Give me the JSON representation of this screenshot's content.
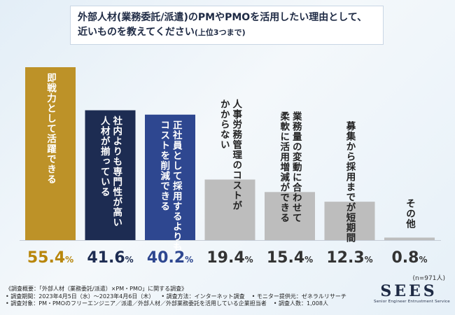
{
  "title": {
    "line1": "外部人材(業務委託/派遣)のPMやPMOを活用したい理由として、",
    "line2_main": "近いものを教えてください",
    "line2_sub": "(上位3つまで)"
  },
  "chart_data": {
    "type": "bar",
    "title": "外部人材(業務委託/派遣)のPMやPMOを活用したい理由として、近いものを教えてください(上位3つまで)",
    "categories": [
      "即戦力として活躍できる",
      "社内よりも専門性が高い人材が揃っている",
      "正社員として採用するよりもコストを削減できる",
      "人事労務管理のコストがかからない",
      "業務量の変動に合わせて柔軟に活用増減ができる",
      "募集から採用までが短期間",
      "その他"
    ],
    "category_lines": [
      [
        "即戦力として活躍できる"
      ],
      [
        "社内よりも専門性が高い",
        "人材が揃っている"
      ],
      [
        "正社員として採用するよりも",
        "コストを削減できる"
      ],
      [
        "人事労務管理のコストが",
        "かからない"
      ],
      [
        "業務量の変動に合わせて",
        "柔軟に活用増減ができる"
      ],
      [
        "募集から採用までが短期間"
      ],
      [
        "その他"
      ]
    ],
    "values": [
      55.4,
      41.6,
      40.2,
      19.4,
      15.4,
      12.3,
      0.8
    ],
    "value_labels": [
      "55.4",
      "41.6",
      "40.2",
      "19.4",
      "15.4",
      "12.3",
      "0.8"
    ],
    "unit": "%",
    "ylim": [
      0,
      55.4
    ],
    "colors": [
      "#bd9228",
      "#1d2c52",
      "#2e4790",
      "#bdbdbd",
      "#bdbdbd",
      "#bdbdbd",
      "#bdbdbd"
    ],
    "text_colors": [
      "#ffffff",
      "#ffffff",
      "#ffffff",
      "#222222",
      "#222222",
      "#222222",
      "#222222"
    ],
    "value_colors": [
      "#b8860b",
      "#1d2c52",
      "#2e4790",
      "#333333",
      "#333333",
      "#333333",
      "#333333"
    ]
  },
  "sample_note": "(n=971人)",
  "footer": {
    "line1": "《調査概要：「外部人材（業務委託/派遣）×PM・PMO」に関する調査》",
    "period": "• 調査期間：2023年4月5日（水）～2023年4月6日（木）",
    "method": "• 調査方法：インターネット調査",
    "monitor": "• モニター提供元：ゼネラルリサーチ",
    "target": "• 調査対象：PM・PMOのフリーエンジニア／派遣／外部人材／外部業務委託を活用している企業担当者",
    "count": "• 調査人数：1,008人"
  },
  "logo": {
    "main": "SEES",
    "sub": "Senior Engineer Entrustment Service"
  }
}
